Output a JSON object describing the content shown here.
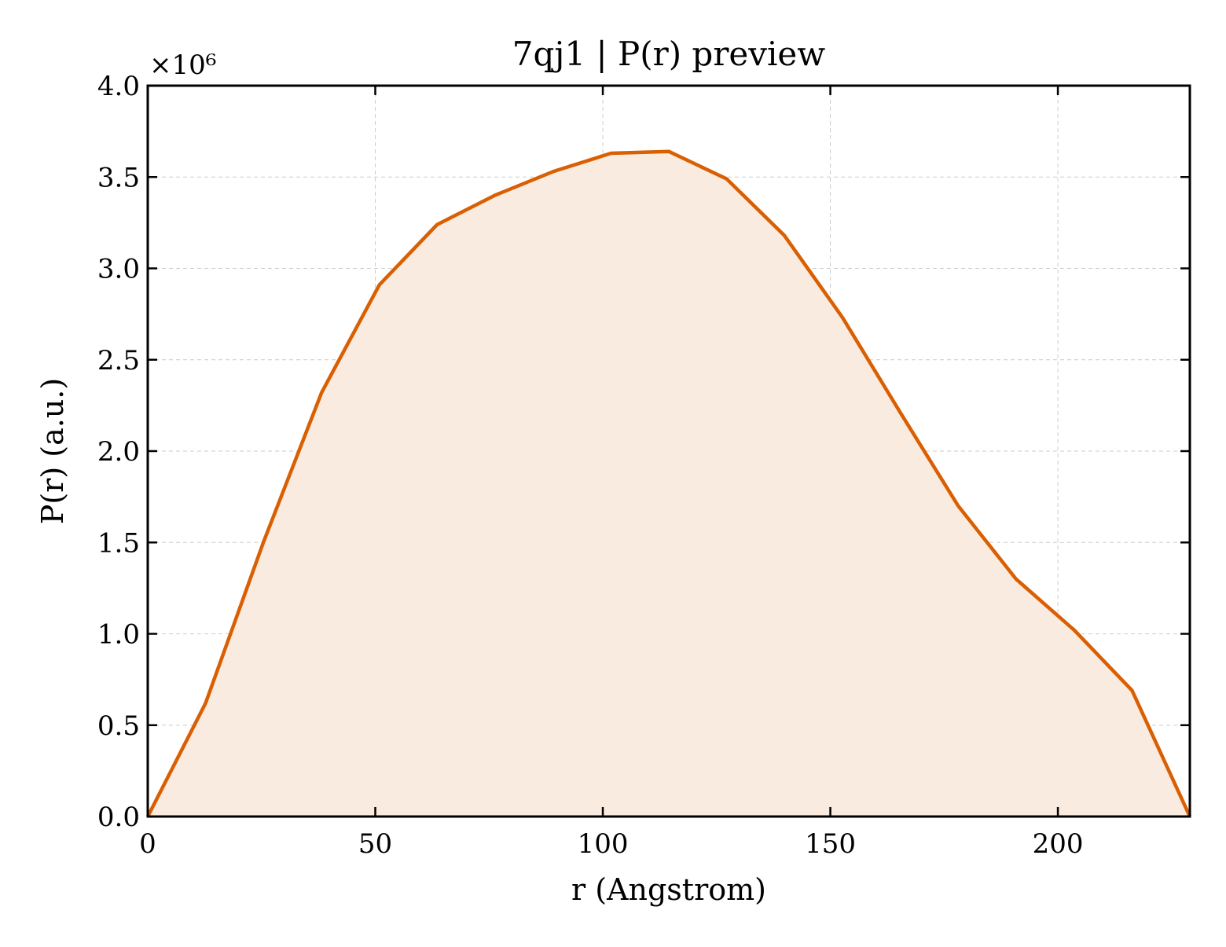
{
  "chart_data": {
    "type": "area",
    "title": "7qj1 | P(r) preview",
    "xlabel": "r (Angstrom)",
    "ylabel": "P(r) (a.u.)",
    "y_multiplier_label": "×10⁶",
    "y_scale_factor": 1000000,
    "xlim": [
      0,
      229
    ],
    "ylim": [
      0,
      4000000
    ],
    "x_ticks": [
      0,
      50,
      100,
      150,
      200
    ],
    "x_tick_labels": [
      "0",
      "50",
      "100",
      "150",
      "200"
    ],
    "y_ticks": [
      0,
      500000,
      1000000,
      1500000,
      2000000,
      2500000,
      3000000,
      3500000,
      4000000
    ],
    "y_tick_labels": [
      "0.0",
      "0.5",
      "1.0",
      "1.5",
      "2.0",
      "2.5",
      "3.0",
      "3.5",
      "4.0"
    ],
    "grid": true,
    "line_color": "#d95f02",
    "fill_color": "#f9ebe0",
    "series": [
      {
        "x": [
          0,
          12.7,
          25.4,
          38.2,
          50.9,
          63.6,
          76.3,
          89.1,
          101.8,
          114.5,
          127.2,
          139.9,
          152.7,
          165.4,
          178.1,
          190.8,
          203.6,
          216.3,
          229
        ],
        "y": [
          0,
          620000,
          1500000,
          2320000,
          2910000,
          3240000,
          3400000,
          3530000,
          3630000,
          3640000,
          3490000,
          3180000,
          2730000,
          2210000,
          1700000,
          1300000,
          1020000,
          690000,
          0
        ]
      }
    ]
  }
}
